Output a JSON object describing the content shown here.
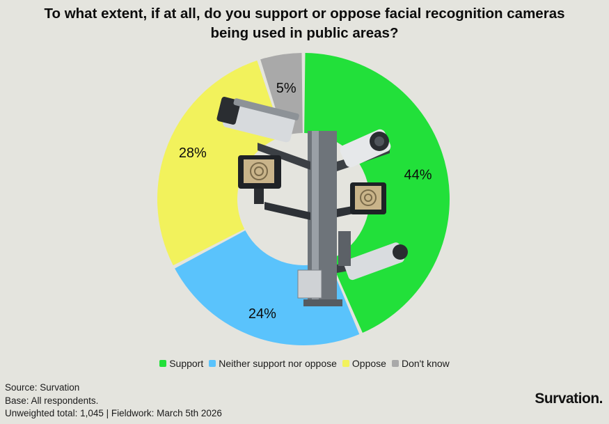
{
  "title_lines": [
    "To what extent, if at all, do you support or oppose facial recognition cameras",
    "being used in public areas?"
  ],
  "chart_data": {
    "type": "pie",
    "donut": true,
    "start": "top",
    "direction": "clockwise",
    "categories": [
      "Support",
      "Neither support nor oppose",
      "Oppose",
      "Don't know"
    ],
    "values": [
      44,
      24,
      28,
      5
    ],
    "labels": [
      "44%",
      "24%",
      "28%",
      "5%"
    ],
    "colors": [
      "#22e03a",
      "#5ac3fc",
      "#f2f25c",
      "#a9a9a9"
    ],
    "legend_placement": "bottom-center"
  },
  "center_image": "cctv-cameras-pole",
  "notes": {
    "source": "Source: Survation",
    "base": "Base: All respondents.",
    "sample": "Unweighted total: 1,045 | Fieldwork: March 5th 2026"
  },
  "brand": "Survation."
}
